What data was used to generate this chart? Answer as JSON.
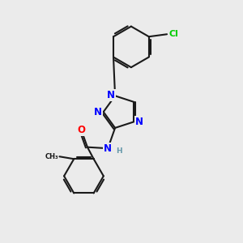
{
  "background_color": "#ebebeb",
  "bond_color": "#1a1a1a",
  "bond_width": 1.5,
  "atom_colors": {
    "N": "#0000ff",
    "O": "#ff0000",
    "Cl": "#00cc00",
    "C": "#1a1a1a",
    "H": "#6699aa"
  },
  "font_size": 8.5,
  "figsize": [
    3.0,
    3.0
  ],
  "dpi": 100,
  "xlim": [
    0,
    10
  ],
  "ylim": [
    0,
    10
  ]
}
